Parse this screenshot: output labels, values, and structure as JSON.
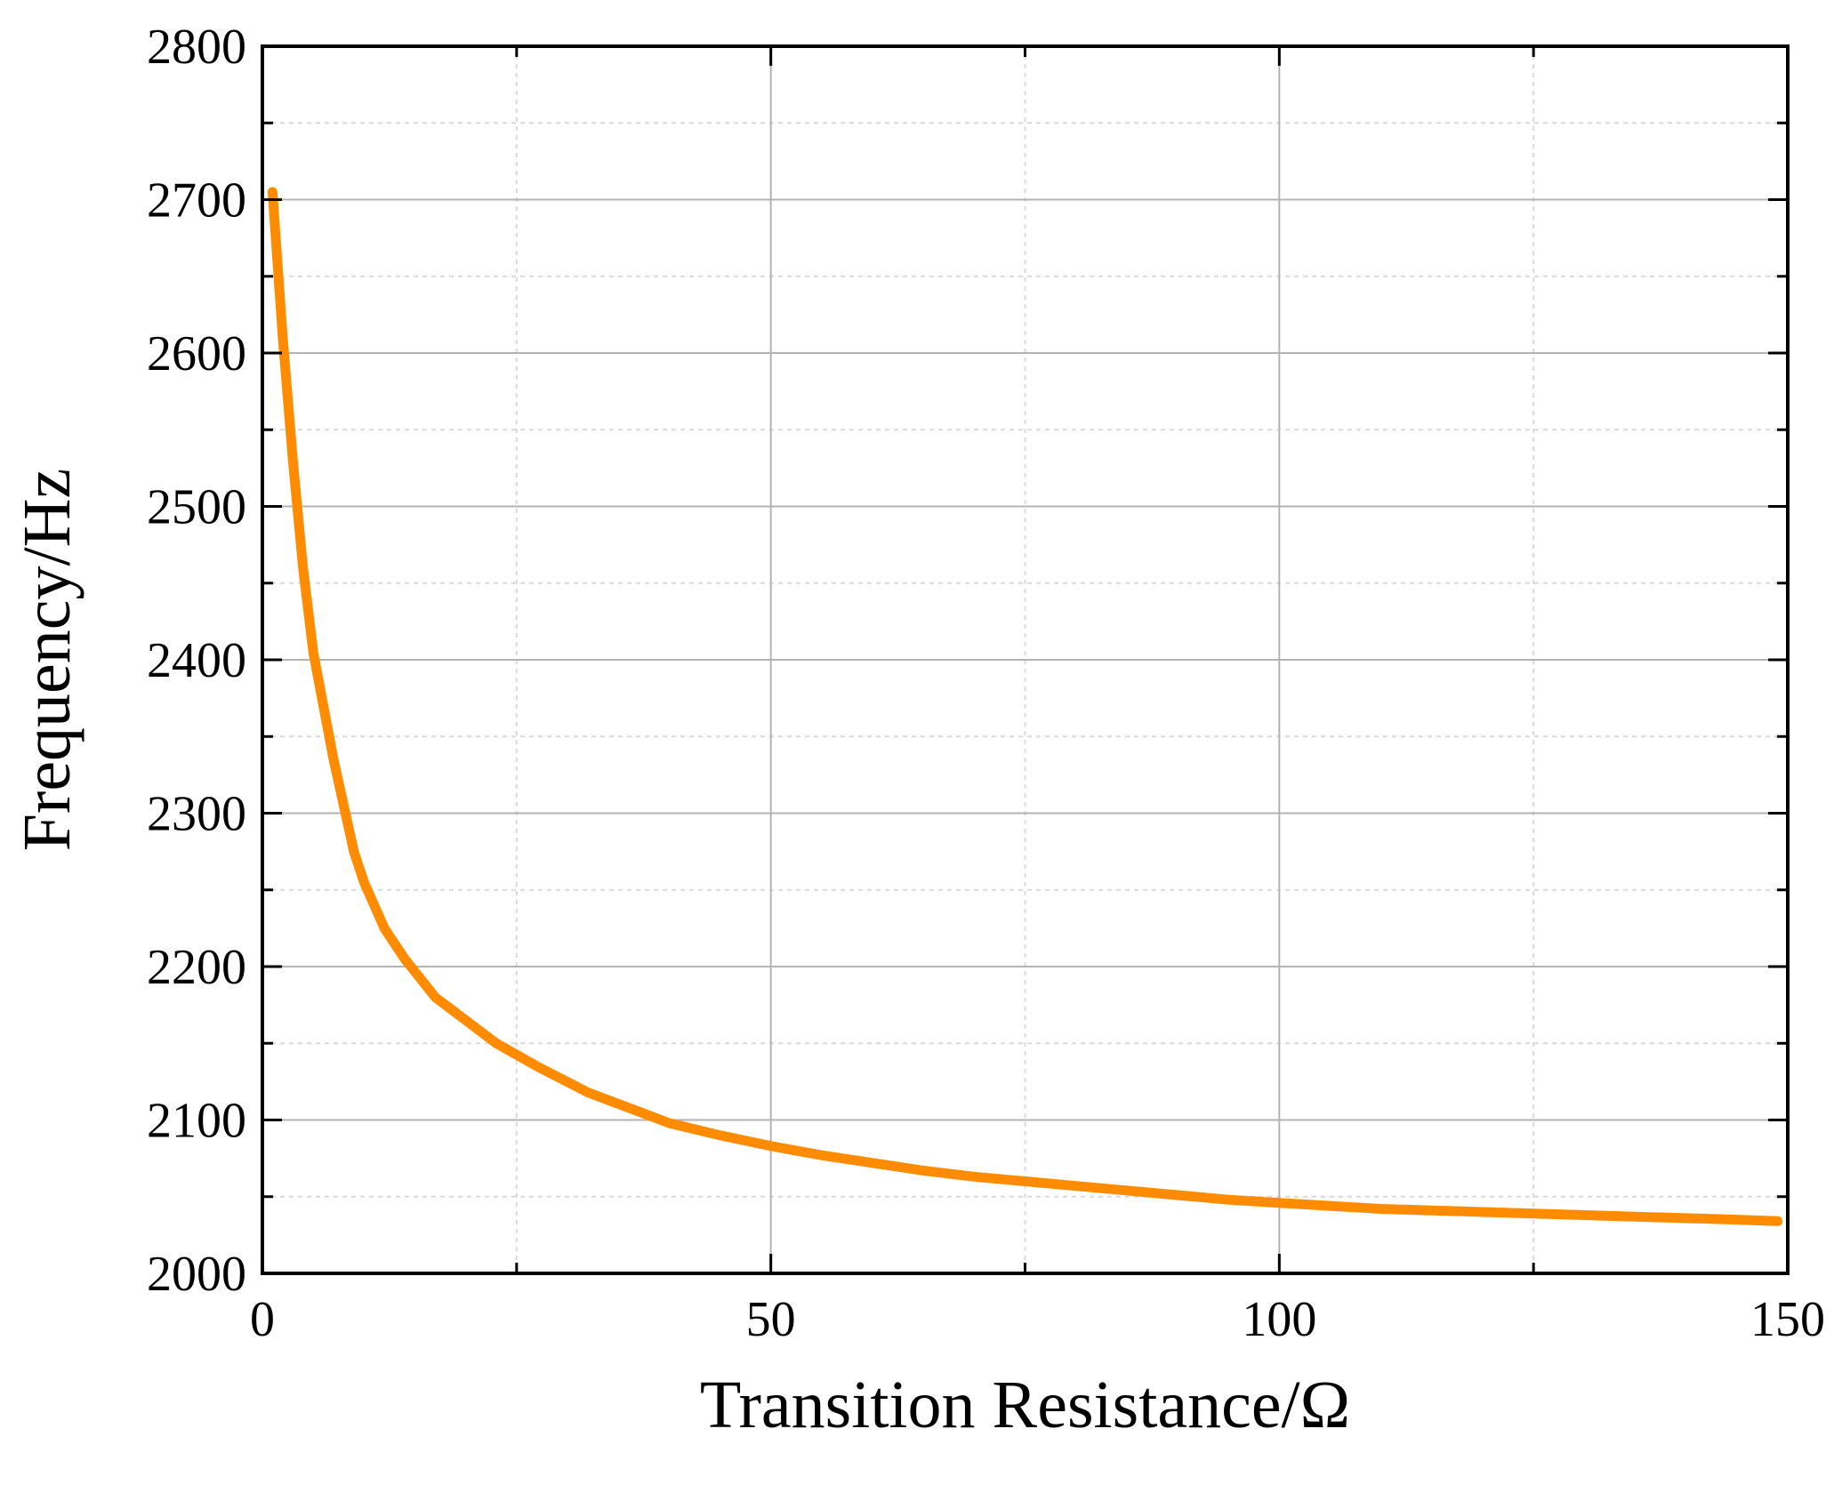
{
  "chart_data": {
    "type": "line",
    "title": "",
    "xlabel": "Transition Resistance/Ω",
    "ylabel": "Frequency/Hz",
    "xlim": [
      0,
      150
    ],
    "ylim": [
      2000,
      2800
    ],
    "x_ticks": [
      "0",
      "50",
      "100",
      "150"
    ],
    "y_ticks": [
      "2000",
      "2100",
      "2200",
      "2300",
      "2400",
      "2500",
      "2600",
      "2700",
      "2800"
    ],
    "grid": true,
    "legend": "none",
    "colors": {
      "line": "#ff8c00",
      "frame": "#000000",
      "grid_major": "#b3b3b3",
      "grid_minor": "#d9d9d9"
    },
    "series": [
      {
        "x": [
          1,
          2,
          3,
          4,
          5,
          6,
          7,
          8,
          9,
          10,
          12,
          14,
          17,
          20,
          23,
          27,
          32,
          36,
          40,
          45,
          50,
          55,
          60,
          65,
          70,
          75,
          80,
          85,
          90,
          95,
          100,
          105,
          110,
          115,
          120,
          125,
          130,
          135,
          140,
          145,
          149
        ],
        "y": [
          2705,
          2610,
          2530,
          2460,
          2405,
          2370,
          2335,
          2305,
          2275,
          2255,
          2225,
          2205,
          2180,
          2165,
          2150,
          2135,
          2118,
          2108,
          2098,
          2090,
          2083,
          2077,
          2072,
          2067,
          2063,
          2060,
          2057,
          2054,
          2051,
          2048,
          2046,
          2044,
          2042,
          2041,
          2040,
          2039,
          2038,
          2037,
          2036,
          2035,
          2034
        ]
      }
    ]
  }
}
